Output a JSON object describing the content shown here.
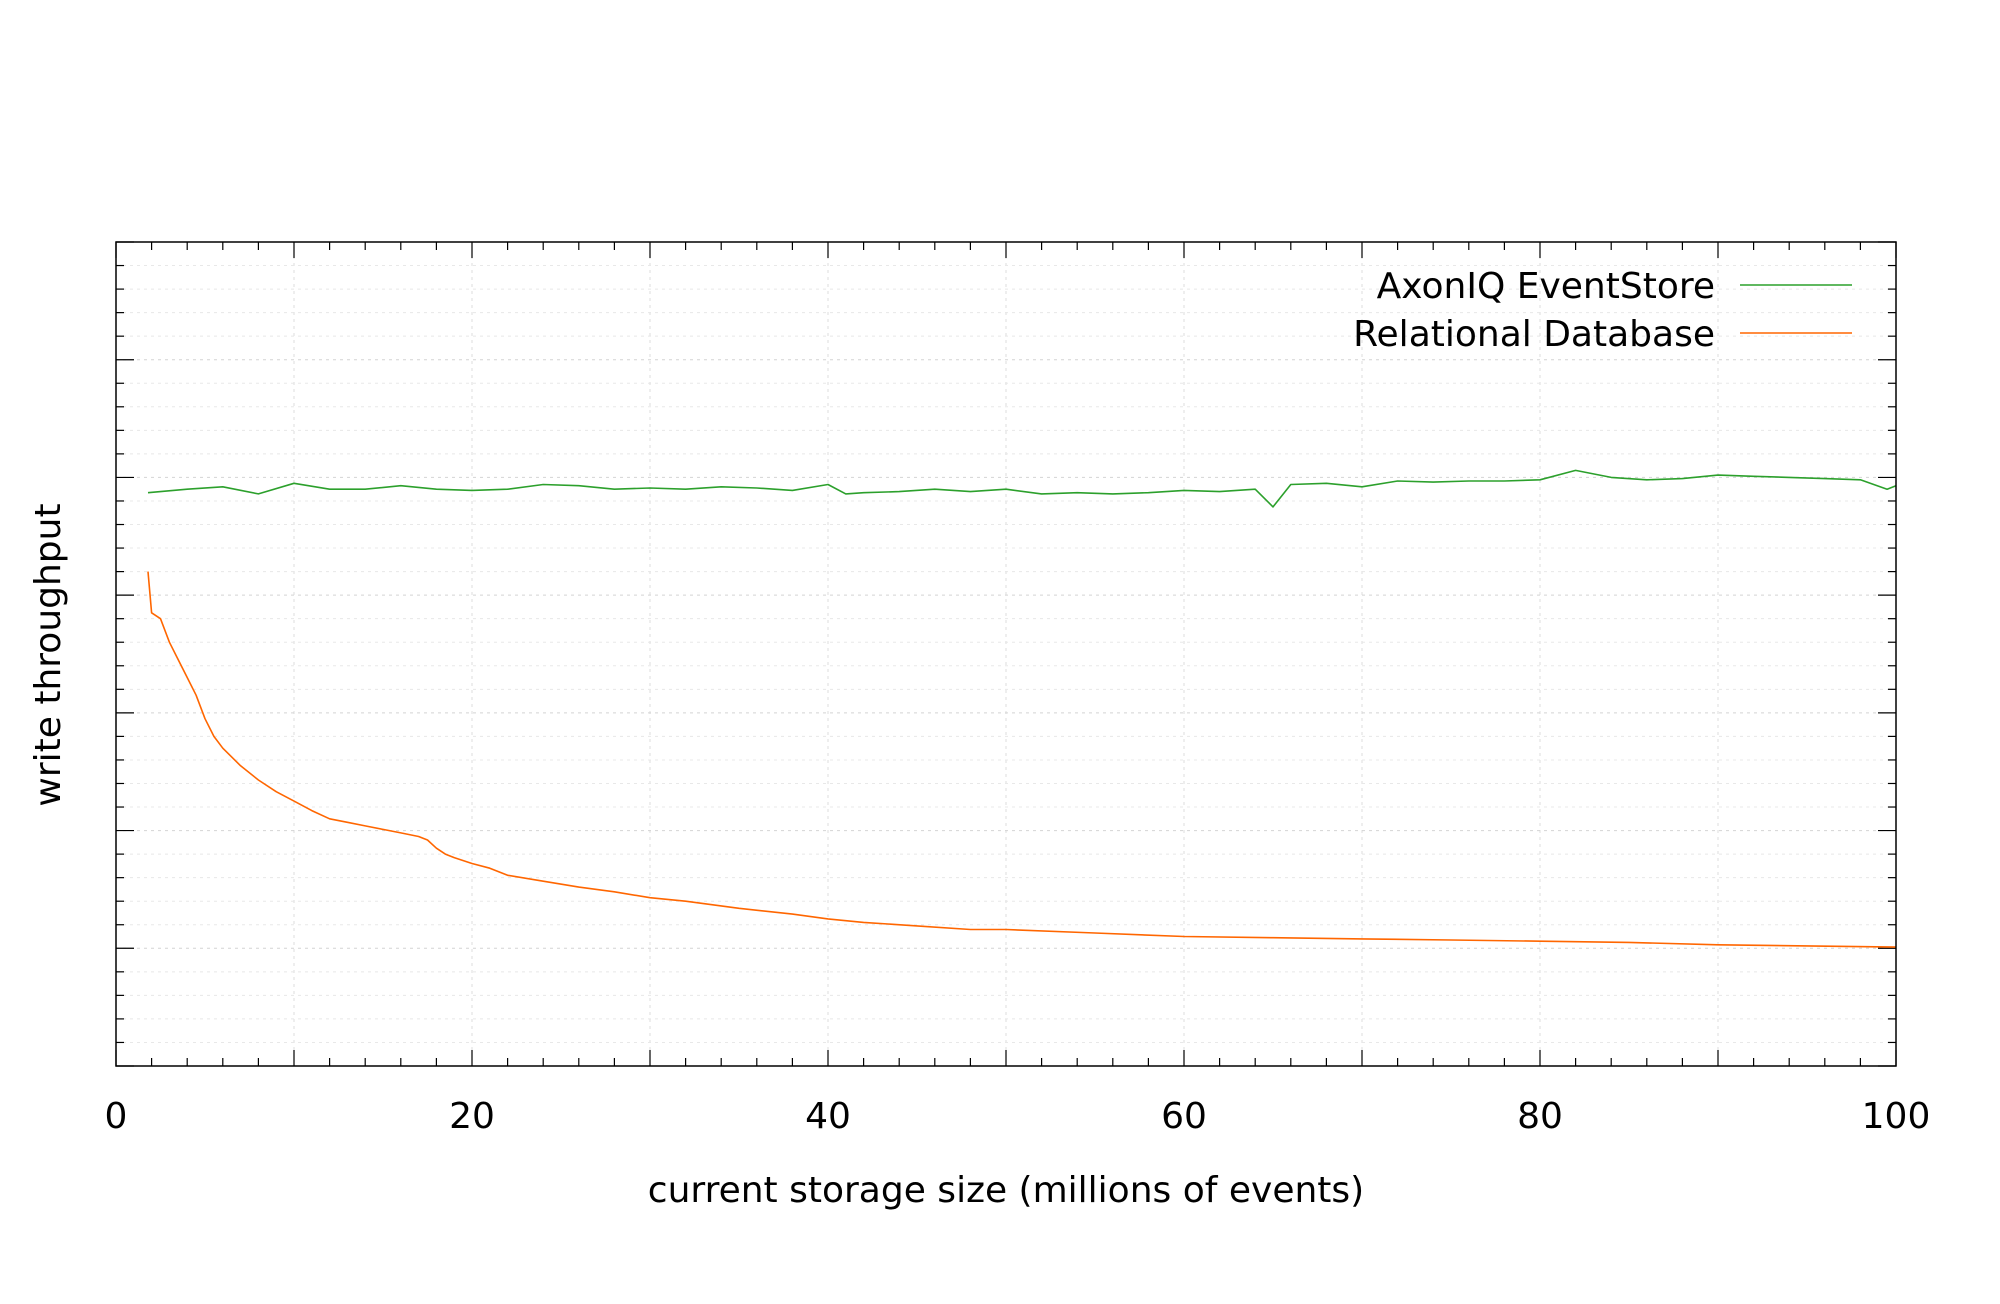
{
  "chart_data": {
    "type": "line",
    "title": "",
    "xlabel": "current storage size (millions of events)",
    "ylabel": "write throughput",
    "xlim": [
      0,
      100
    ],
    "ylim": [
      0,
      7
    ],
    "x_ticks": [
      0,
      20,
      40,
      60,
      80,
      100
    ],
    "x_tick_labels": [
      "0",
      "20",
      "40",
      "60",
      "80",
      "100"
    ],
    "y_tick_labels_shown": false,
    "grid": true,
    "legend_position": "top-right",
    "series": [
      {
        "name": "AxonIQ EventStore",
        "color": "#2ca02c",
        "x": [
          1.8,
          4,
          6,
          8,
          10,
          12,
          14,
          16,
          18,
          20,
          22,
          24,
          26,
          28,
          30,
          32,
          34,
          36,
          38,
          40,
          41,
          42,
          44,
          46,
          48,
          50,
          52,
          54,
          56,
          58,
          60,
          62,
          64,
          65,
          66,
          68,
          70,
          72,
          74,
          76,
          78,
          80,
          82,
          84,
          86,
          88,
          90,
          92,
          94,
          96,
          98,
          99.5,
          100
        ],
        "y": [
          4.87,
          4.9,
          4.92,
          4.86,
          4.95,
          4.9,
          4.9,
          4.93,
          4.9,
          4.89,
          4.9,
          4.94,
          4.93,
          4.9,
          4.91,
          4.9,
          4.92,
          4.91,
          4.89,
          4.94,
          4.86,
          4.87,
          4.88,
          4.9,
          4.88,
          4.9,
          4.86,
          4.87,
          4.86,
          4.87,
          4.89,
          4.88,
          4.9,
          4.75,
          4.94,
          4.95,
          4.92,
          4.97,
          4.96,
          4.97,
          4.97,
          4.98,
          5.06,
          5.0,
          4.98,
          4.99,
          5.02,
          5.01,
          5.0,
          4.99,
          4.98,
          4.9,
          4.93
        ]
      },
      {
        "name": "Relational Database",
        "color": "#ff6600",
        "x": [
          1.8,
          2.0,
          2.5,
          3,
          3.5,
          4,
          4.5,
          5,
          5.5,
          6,
          7,
          8,
          9,
          10,
          11,
          12,
          13,
          14,
          15,
          16,
          17,
          17.5,
          18,
          18.5,
          19,
          20,
          21,
          22,
          24,
          26,
          28,
          30,
          32,
          35,
          38,
          40,
          42,
          45,
          48,
          50,
          55,
          60,
          65,
          70,
          75,
          80,
          85,
          90,
          95,
          100
        ],
        "y": [
          4.2,
          3.85,
          3.8,
          3.6,
          3.45,
          3.3,
          3.15,
          2.95,
          2.8,
          2.7,
          2.55,
          2.43,
          2.33,
          2.25,
          2.17,
          2.1,
          2.07,
          2.04,
          2.01,
          1.98,
          1.95,
          1.92,
          1.85,
          1.8,
          1.77,
          1.72,
          1.68,
          1.62,
          1.57,
          1.52,
          1.48,
          1.43,
          1.4,
          1.34,
          1.29,
          1.25,
          1.22,
          1.19,
          1.16,
          1.16,
          1.13,
          1.1,
          1.09,
          1.08,
          1.07,
          1.06,
          1.05,
          1.03,
          1.02,
          1.01
        ]
      }
    ]
  }
}
